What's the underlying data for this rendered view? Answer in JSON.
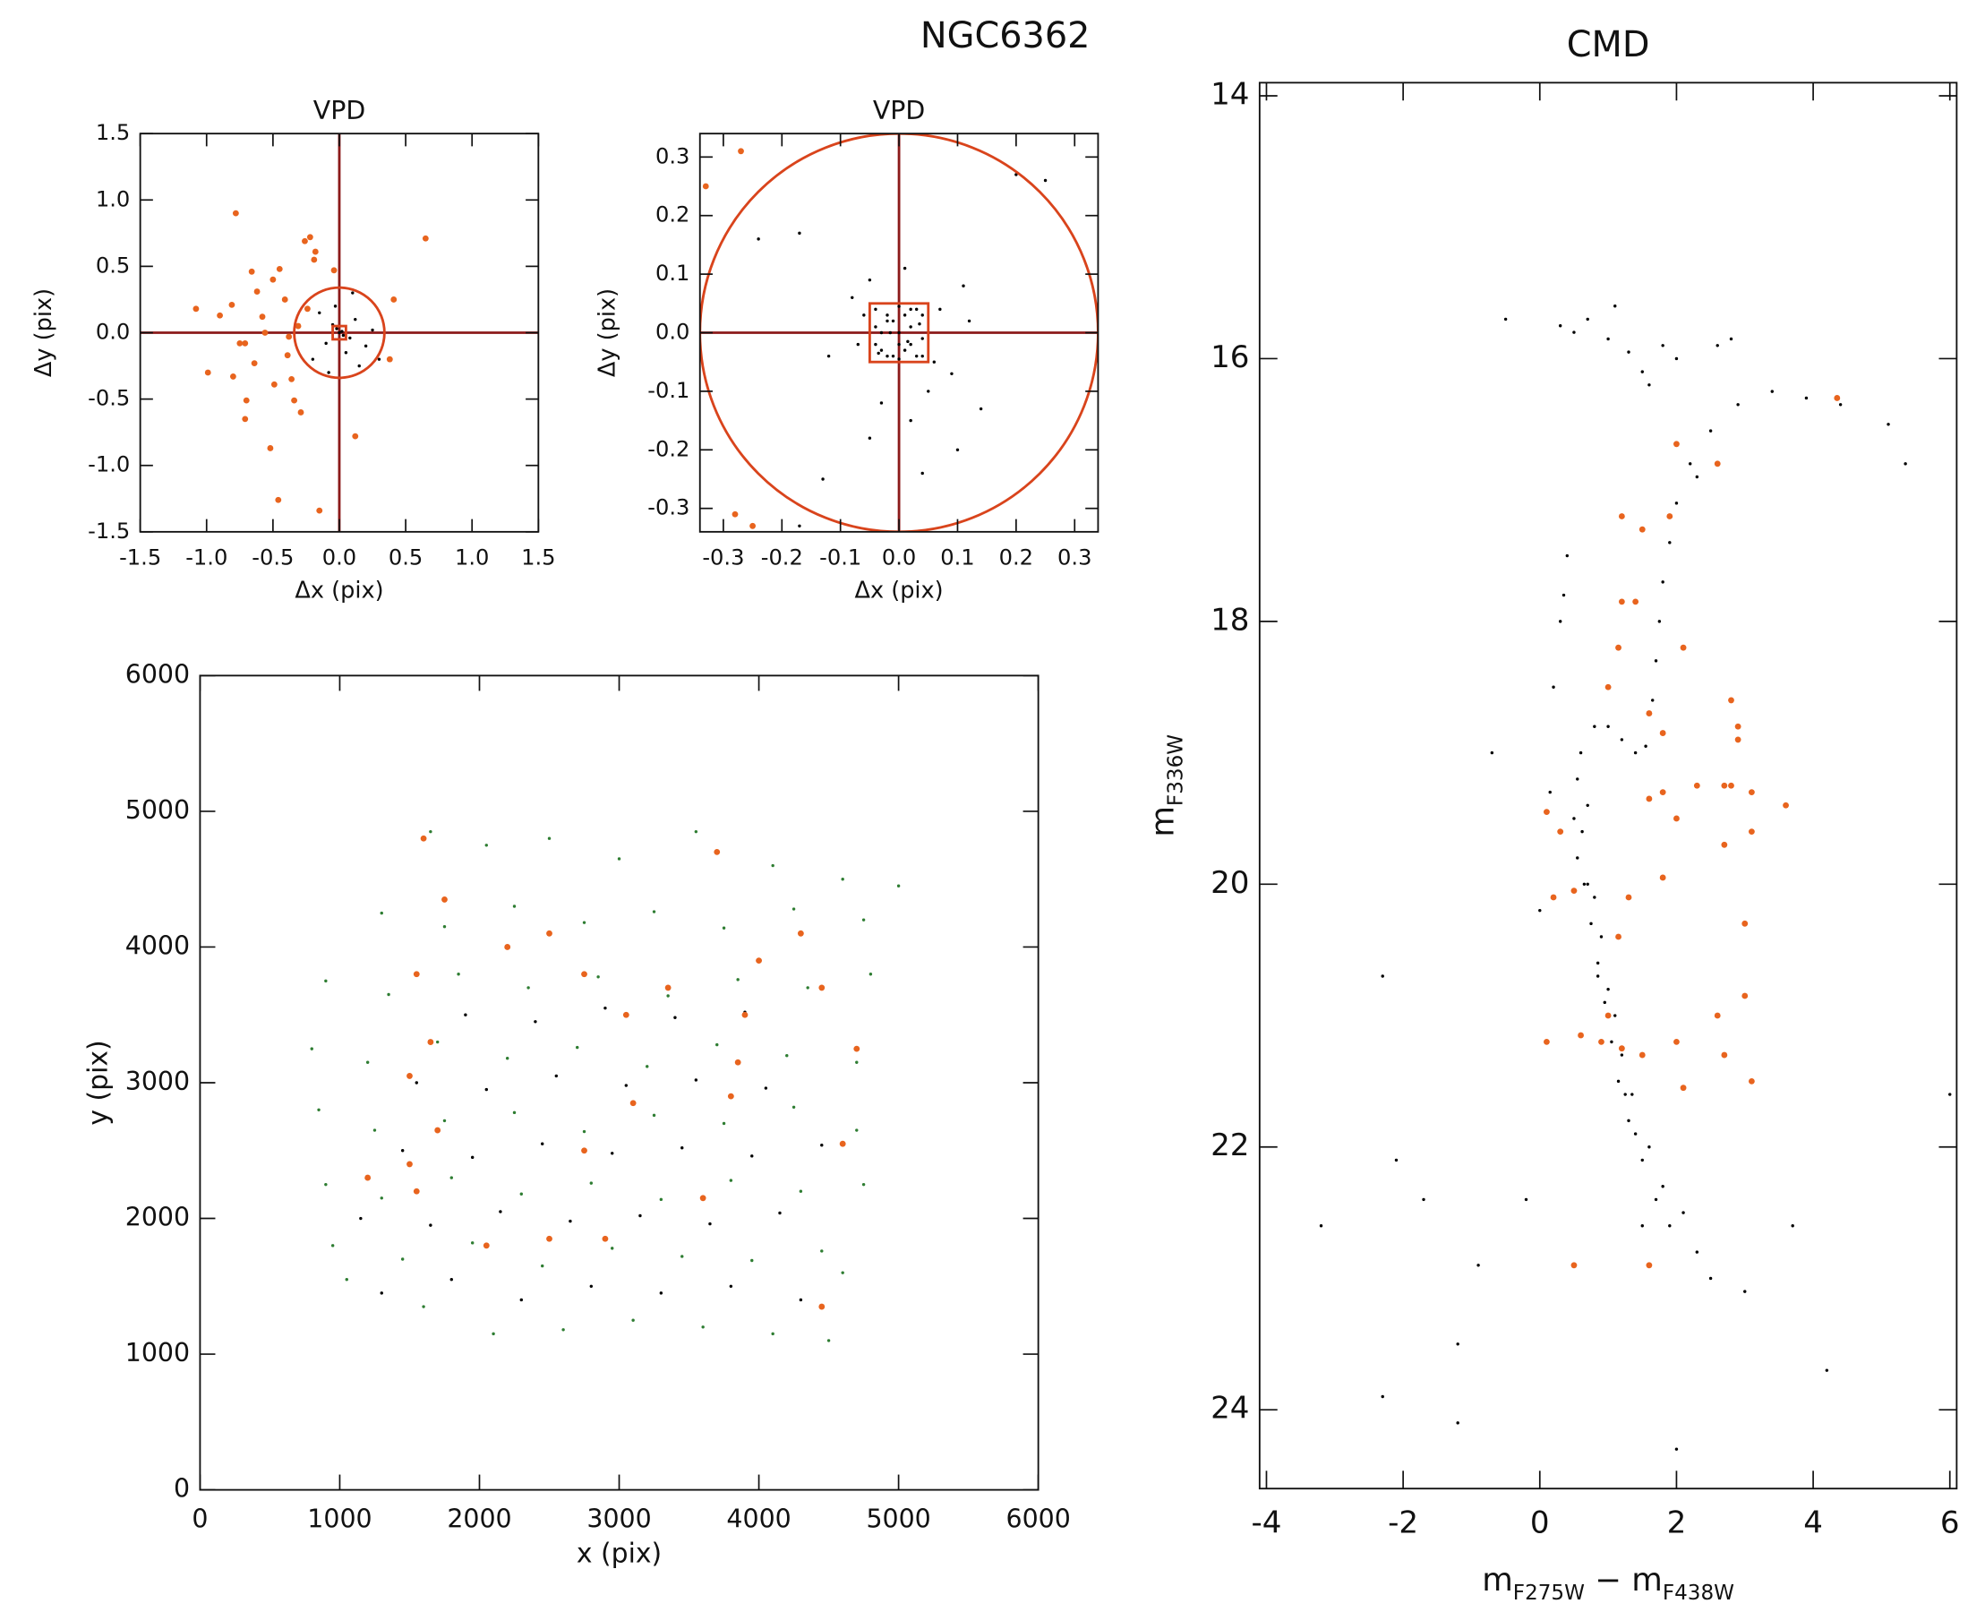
{
  "title": "NGC6362",
  "chart_data": [
    {
      "type": "scatter",
      "title": "VPD",
      "x_label": "Δx (pix)",
      "y_label": "Δy (pix)",
      "xlim": [
        -1.5,
        1.5
      ],
      "ylim": [
        -1.5,
        1.5
      ],
      "xticks": [
        -1.5,
        {
          "value": -1.0,
          "label": "-1.0"
        },
        -0.5,
        {
          "value": 0,
          "label": "0.0"
        },
        0.5,
        {
          "value": 1.0,
          "label": "1.0"
        },
        1.5
      ],
      "yticks": [
        -1.5,
        {
          "value": -1.0,
          "label": "-1.0"
        },
        -0.5,
        {
          "value": 0,
          "label": "0.0"
        },
        0.5,
        {
          "value": 1.0,
          "label": "1.0"
        },
        1.5
      ],
      "reference": {
        "cross": 0,
        "circle_radius": 0.34,
        "square_half": 0.05,
        "line_color": "#8b1a1a",
        "circle_color": "#d9441c"
      },
      "series": [
        {
          "color": "#000000",
          "x": [
            0.02,
            -0.05,
            0.08,
            -0.1,
            0.12,
            0.2,
            -0.15,
            0.25,
            0.3,
            -0.2,
            0.05,
            -0.03,
            0.15,
            0.1,
            -0.08,
            0.0,
            0.03,
            -0.02
          ],
          "values": [
            0.01,
            0.06,
            -0.04,
            -0.08,
            0.1,
            -0.1,
            0.15,
            0.02,
            -0.2,
            -0.2,
            -0.15,
            0.2,
            -0.25,
            0.3,
            -0.3,
            0.0,
            -0.02,
            0.03
          ]
        },
        {
          "color": "#e8641e",
          "x": [
            -0.78,
            -1.08,
            -0.9,
            -0.99,
            -0.75,
            -0.71,
            -0.7,
            -0.71,
            -0.66,
            -0.62,
            -0.58,
            -0.56,
            -0.52,
            -0.46,
            -0.5,
            -0.45,
            -0.41,
            -0.39,
            -0.36,
            -0.34,
            -0.26,
            -0.22,
            -0.18,
            -0.19,
            -0.15,
            -0.31,
            -0.04,
            0.41,
            0.38,
            0.65,
            0.12,
            -0.29,
            -0.49,
            -0.81,
            -0.64,
            -0.24,
            -0.38,
            -0.8
          ],
          "values": [
            0.9,
            0.18,
            0.13,
            -0.3,
            -0.08,
            -0.08,
            -0.51,
            -0.65,
            0.46,
            0.31,
            0.12,
            0.0,
            -0.87,
            -1.26,
            0.4,
            0.48,
            0.25,
            -0.17,
            -0.35,
            -0.51,
            0.69,
            0.72,
            0.61,
            0.55,
            -1.34,
            0.05,
            0.47,
            0.25,
            -0.2,
            0.71,
            -0.78,
            -0.6,
            -0.39,
            0.21,
            -0.23,
            0.18,
            -0.03,
            -0.33
          ]
        }
      ]
    },
    {
      "type": "scatter",
      "title": "VPD",
      "x_label": "Δx (pix)",
      "y_label": "Δy (pix)",
      "xlim": [
        -0.34,
        0.34
      ],
      "ylim": [
        -0.34,
        0.34
      ],
      "xticks": [
        -0.3,
        -0.2,
        -0.1,
        {
          "value": 0,
          "label": "0.0"
        },
        0.1,
        0.2,
        0.3
      ],
      "yticks": [
        -0.3,
        -0.2,
        -0.1,
        {
          "value": 0,
          "label": "0.0"
        },
        0.1,
        0.2,
        0.3
      ],
      "reference": {
        "cross": 0,
        "circle_radius": 0.34,
        "square_half": 0.05,
        "line_color": "#8b1a1a",
        "circle_color": "#d9441c"
      },
      "series": [
        {
          "color": "#000000",
          "x": [
            -0.04,
            -0.03,
            -0.02,
            -0.01,
            0.0,
            0.01,
            0.02,
            0.03,
            0.04,
            -0.04,
            -0.02,
            0.0,
            0.02,
            0.04,
            -0.03,
            -0.01,
            0.01,
            0.03,
            -0.04,
            -0.02,
            0.0,
            0.02,
            0.04,
            -0.035,
            0.035,
            -0.015,
            0.015,
            0.0,
            -0.06,
            0.06,
            -0.07,
            0.07,
            -0.08,
            0.09,
            0.05,
            -0.05,
            0.11,
            -0.12,
            0.14,
            -0.17,
            0.12,
            -0.03,
            0.02,
            0.01,
            -0.05,
            -0.24,
            0.1,
            -0.17,
            0.2,
            0.25,
            -0.13,
            0.04
          ],
          "values": [
            0.04,
            -0.03,
            0.02,
            -0.04,
            0.0,
            0.03,
            -0.02,
            0.04,
            -0.01,
            0.01,
            -0.04,
            0.045,
            0.01,
            0.03,
            0.0,
            0.02,
            -0.03,
            -0.04,
            -0.02,
            0.03,
            -0.02,
            0.04,
            -0.04,
            -0.035,
            0.015,
            0.0,
            -0.015,
            -0.045,
            0.03,
            -0.05,
            -0.02,
            0.04,
            0.06,
            -0.07,
            -0.1,
            0.09,
            0.08,
            -0.04,
            -0.13,
            0.17,
            0.02,
            -0.12,
            -0.15,
            0.11,
            -0.18,
            0.16,
            -0.2,
            -0.33,
            0.27,
            0.26,
            -0.25,
            -0.24
          ]
        },
        {
          "color": "#e8641e",
          "x": [
            -0.33,
            -0.27,
            -0.28,
            -0.25
          ],
          "values": [
            0.25,
            0.31,
            -0.31,
            -0.33
          ]
        }
      ]
    },
    {
      "type": "scatter",
      "x_label": "x (pix)",
      "y_label": "y (pix)",
      "xlim": [
        0,
        6000
      ],
      "ylim": [
        0,
        6000
      ],
      "xticks": [
        0,
        1000,
        2000,
        3000,
        4000,
        5000,
        6000
      ],
      "yticks": [
        0,
        1000,
        2000,
        3000,
        4000,
        5000,
        6000
      ],
      "series": [
        {
          "color": "#2e7d32",
          "x": [
            1050,
            1600,
            2100,
            2600,
            3100,
            3600,
            4100,
            4500,
            950,
            1450,
            1950,
            2450,
            2950,
            3450,
            3950,
            4450,
            4600,
            900,
            1300,
            1800,
            2300,
            2800,
            3300,
            3800,
            4300,
            4750,
            850,
            1250,
            1750,
            2250,
            2750,
            3250,
            3750,
            4250,
            4700,
            800,
            1200,
            1700,
            2200,
            2700,
            3200,
            3700,
            4200,
            4700,
            900,
            1350,
            1850,
            2350,
            2850,
            3350,
            3850,
            4350,
            4800,
            1300,
            1750,
            2250,
            2750,
            3250,
            3750,
            4250,
            4750,
            5000,
            1650,
            2050,
            2500,
            3000,
            3550,
            4100,
            4600
          ],
          "values": [
            1550,
            1350,
            1150,
            1180,
            1250,
            1200,
            1150,
            1100,
            1800,
            1700,
            1820,
            1650,
            1780,
            1720,
            1690,
            1760,
            1600,
            2250,
            2150,
            2300,
            2180,
            2260,
            2140,
            2280,
            2200,
            2250,
            2800,
            2650,
            2720,
            2780,
            2640,
            2760,
            2700,
            2820,
            2650,
            3250,
            3150,
            3300,
            3180,
            3260,
            3120,
            3280,
            3200,
            3150,
            3750,
            3650,
            3800,
            3700,
            3780,
            3640,
            3760,
            3700,
            3800,
            4250,
            4150,
            4300,
            4180,
            4260,
            4140,
            4280,
            4200,
            4450,
            4850,
            4750,
            4800,
            4650,
            4850,
            4600,
            4500
          ]
        },
        {
          "color": "#000000",
          "x": [
            1300,
            1800,
            2300,
            2800,
            3300,
            3800,
            4300,
            1150,
            1650,
            2150,
            2650,
            3150,
            3650,
            4150,
            1450,
            1950,
            2450,
            2950,
            3450,
            3950,
            4450,
            1550,
            2050,
            2550,
            3050,
            3550,
            4050,
            1900,
            2400,
            2900,
            3400,
            3900
          ],
          "values": [
            1450,
            1550,
            1400,
            1500,
            1450,
            1500,
            1400,
            2000,
            1950,
            2050,
            1980,
            2020,
            1960,
            2040,
            2500,
            2450,
            2550,
            2480,
            2520,
            2460,
            2540,
            3000,
            2950,
            3050,
            2980,
            3020,
            2960,
            3500,
            3450,
            3550,
            3480,
            3520
          ]
        },
        {
          "color": "#e8641e",
          "x": [
            1600,
            1750,
            1550,
            1650,
            1500,
            1700,
            1500,
            1550,
            1200,
            2050,
            2500,
            2750,
            2900,
            3100,
            3350,
            3050,
            2750,
            3800,
            3850,
            4300,
            4450,
            4700,
            4600,
            4450,
            3600,
            3900,
            2500,
            2200,
            3700,
            4000
          ],
          "values": [
            4800,
            4350,
            3800,
            3300,
            3050,
            2650,
            2400,
            2200,
            2300,
            1800,
            1850,
            2500,
            1850,
            2850,
            3700,
            3500,
            3800,
            2900,
            3150,
            4100,
            3700,
            3250,
            2550,
            1350,
            2150,
            3500,
            4100,
            4000,
            4700,
            3900
          ]
        }
      ]
    },
    {
      "type": "scatter",
      "title": "CMD",
      "x_label": [
        {
          "text": "m"
        },
        {
          "text": "F275W",
          "sub": true
        },
        {
          "text": " − m"
        },
        {
          "text": "F438W",
          "sub": true
        }
      ],
      "y_label": [
        {
          "text": "m"
        },
        {
          "text": "F336W",
          "sub": true
        }
      ],
      "xlim": [
        -4.1,
        6.1
      ],
      "ylim": [
        24.6,
        13.9
      ],
      "xticks": [
        -4,
        -2,
        0,
        2,
        4,
        6
      ],
      "yticks": [
        14,
        16,
        18,
        20,
        22,
        24
      ],
      "series": [
        {
          "color": "#000000",
          "x": [
            0.6,
            0.55,
            0.5,
            0.55,
            0.65,
            0.75,
            0.85,
            0.95,
            1.05,
            1.15,
            1.3,
            1.5,
            1.7,
            1.9,
            0.7,
            0.62,
            0.8,
            0.9,
            1.0,
            1.1,
            1.2,
            1.25,
            1.4,
            1.6,
            1.8,
            2.1,
            1.5,
            2.3,
            1.0,
            0.7,
            0.85,
            1.35,
            0.8,
            1.0,
            1.2,
            1.4,
            1.55,
            1.65,
            1.7,
            1.75,
            1.8,
            1.9,
            2.0,
            2.2,
            2.5,
            2.9,
            3.4,
            3.9,
            4.4,
            5.1,
            5.35,
            2.3,
            0.3,
            0.5,
            0.7,
            1.0,
            1.3,
            1.5,
            1.6,
            1.8,
            2.0,
            2.6,
            2.8,
            1.1,
            0.4,
            0.3,
            0.2,
            0.35,
            0.15,
            -2.3,
            -3.2,
            -1.7,
            -2.1,
            -1.2,
            -1.2,
            -2.3,
            -0.9,
            -0.2,
            -0.5,
            0.0,
            4.2,
            3.7,
            2.5,
            3.0,
            2.0,
            6.0,
            -0.7
          ],
          "values": [
            19.0,
            19.2,
            19.5,
            19.8,
            20.0,
            20.3,
            20.6,
            20.9,
            21.2,
            21.5,
            21.8,
            22.1,
            22.4,
            22.6,
            19.4,
            19.6,
            20.1,
            20.4,
            20.8,
            21.0,
            21.3,
            21.6,
            21.9,
            22.0,
            22.3,
            22.5,
            22.6,
            22.8,
            21.0,
            20.0,
            20.7,
            21.6,
            18.8,
            18.8,
            18.9,
            19.0,
            18.95,
            18.6,
            18.3,
            18.0,
            17.7,
            17.4,
            17.1,
            16.8,
            16.55,
            16.35,
            16.25,
            16.3,
            16.35,
            16.5,
            16.8,
            16.9,
            15.75,
            15.8,
            15.7,
            15.85,
            15.95,
            16.1,
            16.2,
            15.9,
            16.0,
            15.9,
            15.85,
            15.6,
            17.5,
            18.0,
            18.5,
            17.8,
            19.3,
            20.7,
            22.6,
            22.4,
            22.1,
            23.5,
            24.1,
            23.9,
            22.9,
            22.4,
            15.7,
            20.2,
            23.7,
            22.6,
            23.0,
            23.1,
            24.3,
            21.6,
            19.0
          ]
        },
        {
          "color": "#e8641e",
          "x": [
            0.1,
            0.3,
            0.2,
            0.5,
            0.1,
            0.6,
            1.0,
            1.15,
            1.3,
            1.8,
            2.0,
            1.6,
            1.8,
            2.3,
            2.7,
            2.8,
            3.1,
            3.6,
            2.7,
            3.1,
            2.9,
            2.9,
            2.1,
            2.8,
            1.0,
            1.6,
            1.8,
            1.2,
            1.5,
            1.9,
            2.0,
            2.6,
            4.35,
            1.2,
            1.4,
            1.15,
            3.0,
            3.0,
            2.6,
            2.7,
            3.1,
            2.0,
            1.5,
            1.6,
            0.5,
            0.9,
            1.2,
            2.1
          ],
          "values": [
            19.45,
            19.6,
            20.1,
            20.05,
            21.2,
            21.15,
            21.0,
            20.4,
            20.1,
            19.95,
            19.5,
            19.35,
            19.3,
            19.25,
            19.25,
            19.25,
            19.3,
            19.4,
            19.7,
            19.6,
            18.8,
            18.9,
            18.2,
            18.6,
            18.5,
            18.7,
            18.85,
            17.2,
            17.3,
            17.2,
            16.65,
            16.8,
            16.3,
            17.85,
            17.85,
            18.2,
            20.3,
            20.85,
            21.0,
            21.3,
            21.5,
            21.2,
            21.3,
            22.9,
            22.9,
            21.2,
            21.25,
            21.55
          ]
        }
      ]
    }
  ]
}
